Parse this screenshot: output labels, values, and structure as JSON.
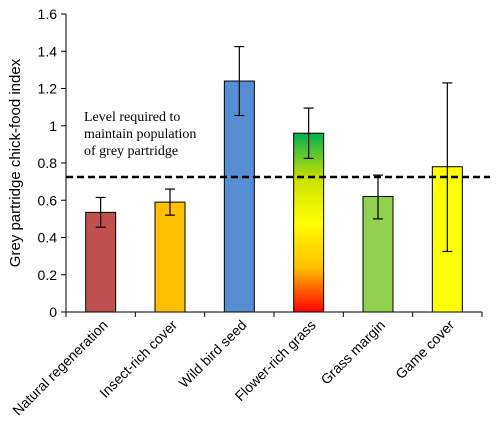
{
  "chart_data": {
    "type": "bar",
    "title": "",
    "ylabel": "Grey partridge chick-food index",
    "xlabel": "",
    "ylim": [
      0,
      1.6
    ],
    "yticks": [
      "0",
      "0.2",
      "0.4",
      "0.6",
      "0.8",
      "1",
      "1.2",
      "1.4",
      "1.6"
    ],
    "categories": [
      "Natural regeneration",
      "Insect-rich cover",
      "Wild bird seed",
      "Flower-rich grass",
      "Grass margin",
      "Game cover"
    ],
    "values": [
      0.535,
      0.59,
      1.24,
      0.96,
      0.62,
      0.78
    ],
    "error_low": [
      0.455,
      0.52,
      1.055,
      0.825,
      0.5,
      0.325
    ],
    "error_high": [
      0.615,
      0.66,
      1.425,
      1.095,
      0.735,
      1.23
    ],
    "bar_colors": [
      "#c0504d",
      "#ffc000",
      "#558ed5",
      "gradient",
      "#92d050",
      "#ffff00"
    ],
    "gradient_colors": [
      "#00b050",
      "#c8e000",
      "#ffff00",
      "#ffc000",
      "#ff0000"
    ],
    "reference_line": {
      "value": 0.725,
      "label_lines": [
        "Level required to",
        "maintain  population",
        "of grey partridge"
      ]
    },
    "grid": false,
    "legend": "none"
  }
}
